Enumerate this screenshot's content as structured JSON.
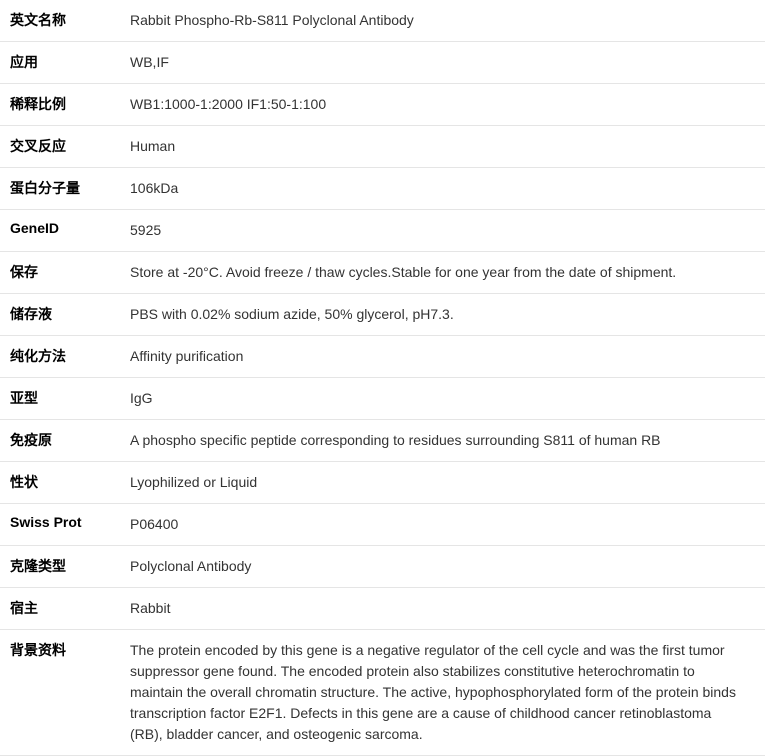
{
  "rows": [
    {
      "label": "英文名称",
      "value": "Rabbit Phospho-Rb-S811 Polyclonal Antibody"
    },
    {
      "label": "应用",
      "value": "WB,IF"
    },
    {
      "label": "稀释比例",
      "value": "WB1:1000-1:2000 IF1:50-1:100"
    },
    {
      "label": "交叉反应",
      "value": "Human"
    },
    {
      "label": "蛋白分子量",
      "value": "106kDa"
    },
    {
      "label": "GeneID",
      "value": "5925"
    },
    {
      "label": "保存",
      "value": "Store at -20°C. Avoid freeze / thaw cycles.Stable for one year from the date of shipment."
    },
    {
      "label": "储存液",
      "value": "PBS with 0.02% sodium azide, 50% glycerol, pH7.3."
    },
    {
      "label": "纯化方法",
      "value": "Affinity purification"
    },
    {
      "label": "亚型",
      "value": "IgG"
    },
    {
      "label": "免疫原",
      "value": "A phospho specific peptide corresponding to residues surrounding S811 of human RB"
    },
    {
      "label": "性状",
      "value": "Lyophilized or Liquid"
    },
    {
      "label": "Swiss Prot",
      "value": "P06400"
    },
    {
      "label": "克隆类型",
      "value": "Polyclonal Antibody"
    },
    {
      "label": "宿主",
      "value": "Rabbit"
    },
    {
      "label": "背景资料",
      "value": "The protein encoded by this gene is a negative regulator of the cell cycle and was the first tumor suppressor gene found. The encoded protein also stabilizes constitutive heterochromatin to maintain the overall chromatin structure. The active, hypophosphorylated form of the protein binds transcription factor E2F1. Defects in this gene are a cause of childhood cancer retinoblastoma (RB), bladder cancer, and osteogenic sarcoma."
    }
  ]
}
